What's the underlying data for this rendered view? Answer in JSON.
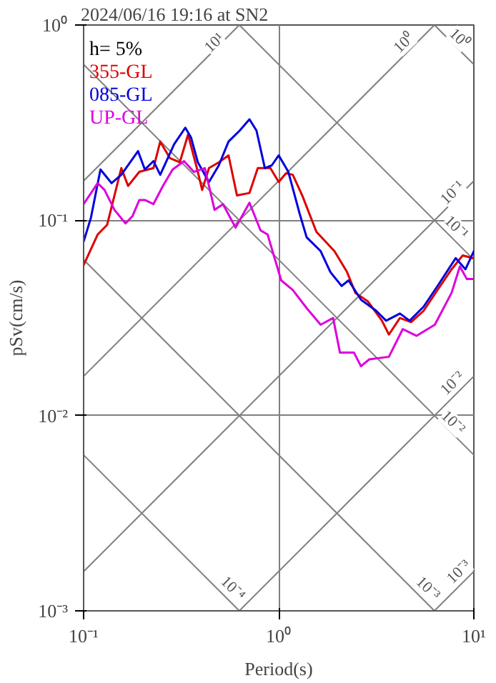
{
  "chart_data": {
    "type": "line",
    "title": "2024/06/16 19:16 at SN2",
    "xlabel": "Period(s)",
    "ylabel": "pSv(cm/s)",
    "log": "xy",
    "grid": true,
    "legend": "top left",
    "xlim": [
      0.1,
      10
    ],
    "ylim": [
      0.001,
      1
    ],
    "xticks": [
      {
        "value": 0.1,
        "label": "10⁻¹"
      },
      {
        "value": 1,
        "label": "10⁰"
      },
      {
        "value": 10,
        "label": "10¹"
      }
    ],
    "yticks": [
      {
        "value": 0.001,
        "label": "10⁻³"
      },
      {
        "value": 0.01,
        "label": "10⁻²"
      },
      {
        "value": 0.1,
        "label": "10⁻¹"
      },
      {
        "value": 1,
        "label": "10⁰"
      }
    ],
    "annotations": [
      "h= 5%",
      {
        "text": "10¹",
        "x": 0.469,
        "y": 0.808
      },
      {
        "text": "10⁰",
        "x": 4.4,
        "y": 0.808
      },
      {
        "text": "10⁻¹",
        "x": 7.8,
        "y": 0.138
      },
      {
        "text": "10⁻²",
        "x": 7.8,
        "y": 0.0146
      },
      {
        "text": "10⁻³",
        "x": 8.4,
        "y": 0.00158
      },
      {
        "text": "10⁰",
        "x": 8.4,
        "y": 0.85
      },
      {
        "text": "10⁻¹",
        "x": 8.1,
        "y": 0.0917
      },
      {
        "text": "10⁻²",
        "x": 7.8,
        "y": 0.0092
      },
      {
        "text": "10⁻³",
        "x": 5.8,
        "y": 0.0013
      },
      {
        "text": "10⁻⁴",
        "x": 0.58,
        "y": 0.0013
      }
    ],
    "series": [
      {
        "color": "#808080",
        "x": [
          0.1,
          0.628
        ],
        "values": [
          0.159,
          1
        ]
      },
      {
        "color": "#808080",
        "x": [
          0.1,
          6.28
        ],
        "values": [
          0.0159,
          1
        ]
      },
      {
        "color": "#808080",
        "x": [
          0.1,
          10
        ],
        "values": [
          0.00159,
          0.159
        ]
      },
      {
        "color": "#808080",
        "x": [
          0.628,
          10
        ],
        "values": [
          0.001,
          0.0159
        ]
      },
      {
        "color": "#808080",
        "x": [
          6.28,
          10
        ],
        "values": [
          0.001,
          0.00159
        ]
      },
      {
        "color": "#808080",
        "x": [
          6.28,
          10
        ],
        "values": [
          1,
          0.628
        ]
      },
      {
        "color": "#808080",
        "x": [
          0.628,
          10
        ],
        "values": [
          1,
          0.0628
        ]
      },
      {
        "color": "#808080",
        "x": [
          0.1,
          10
        ],
        "values": [
          0.628,
          0.00628
        ]
      },
      {
        "color": "#808080",
        "x": [
          0.1,
          6.28
        ],
        "values": [
          0.0628,
          0.001
        ]
      },
      {
        "color": "#808080",
        "x": [
          0.1,
          0.628
        ],
        "values": [
          0.00628,
          0.001
        ]
      },
      {
        "name": "355-GL",
        "color": "#dd0000",
        "x": [
          0.1,
          0.118,
          0.132,
          0.156,
          0.169,
          0.193,
          0.228,
          0.247,
          0.277,
          0.311,
          0.343,
          0.385,
          0.405,
          0.439,
          0.493,
          0.553,
          0.611,
          0.708,
          0.781,
          0.906,
          1.0,
          1.09,
          1.18,
          1.32,
          1.56,
          1.93,
          2.24,
          2.47,
          2.86,
          3.38,
          3.67,
          4.18,
          4.77,
          5.53,
          6.52,
          7.69,
          8.77,
          9.84
        ],
        "values": [
          0.0589,
          0.0845,
          0.0948,
          0.185,
          0.15,
          0.177,
          0.185,
          0.253,
          0.208,
          0.198,
          0.275,
          0.177,
          0.143,
          0.185,
          0.198,
          0.215,
          0.134,
          0.138,
          0.185,
          0.185,
          0.157,
          0.174,
          0.171,
          0.134,
          0.0873,
          0.0695,
          0.0543,
          0.0425,
          0.0385,
          0.0306,
          0.026,
          0.0316,
          0.0301,
          0.0344,
          0.044,
          0.0561,
          0.0661,
          0.064
        ]
      },
      {
        "name": "085-GL",
        "color": "#0000dd",
        "x": [
          0.1,
          0.109,
          0.122,
          0.139,
          0.156,
          0.19,
          0.206,
          0.228,
          0.247,
          0.291,
          0.332,
          0.355,
          0.385,
          0.439,
          0.493,
          0.553,
          0.631,
          0.708,
          0.769,
          0.849,
          0.921,
          1.0,
          1.12,
          1.28,
          1.39,
          1.64,
          1.84,
          2.1,
          2.28,
          2.64,
          3.16,
          3.55,
          4.18,
          4.69,
          5.53,
          6.52,
          8.07,
          9.06,
          10
        ],
        "values": [
          0.0778,
          0.103,
          0.182,
          0.155,
          0.171,
          0.226,
          0.182,
          0.201,
          0.171,
          0.245,
          0.298,
          0.266,
          0.198,
          0.157,
          0.191,
          0.253,
          0.288,
          0.329,
          0.288,
          0.185,
          0.191,
          0.215,
          0.177,
          0.108,
          0.0818,
          0.0695,
          0.0543,
          0.0461,
          0.0492,
          0.0392,
          0.0344,
          0.0306,
          0.0333,
          0.0306,
          0.0361,
          0.0461,
          0.064,
          0.0561,
          0.0695
        ]
      },
      {
        "name": "UP-GL",
        "color": "#dd00dd",
        "x": [
          0.1,
          0.118,
          0.128,
          0.144,
          0.164,
          0.178,
          0.193,
          0.206,
          0.228,
          0.255,
          0.286,
          0.327,
          0.367,
          0.418,
          0.469,
          0.518,
          0.601,
          0.708,
          0.807,
          0.877,
          1.03,
          1.18,
          1.39,
          1.64,
          1.9,
          2.06,
          2.43,
          2.64,
          2.91,
          3.67,
          4.32,
          5.09,
          6.31,
          7.69,
          8.48,
          9.21,
          10
        ],
        "values": [
          0.121,
          0.155,
          0.143,
          0.113,
          0.0964,
          0.105,
          0.127,
          0.127,
          0.121,
          0.15,
          0.182,
          0.201,
          0.177,
          0.185,
          0.113,
          0.121,
          0.0917,
          0.123,
          0.0888,
          0.0845,
          0.0492,
          0.044,
          0.0355,
          0.0292,
          0.0316,
          0.021,
          0.021,
          0.0179,
          0.0194,
          0.02,
          0.0277,
          0.0256,
          0.0292,
          0.0425,
          0.058,
          0.05,
          0.05
        ]
      }
    ]
  }
}
